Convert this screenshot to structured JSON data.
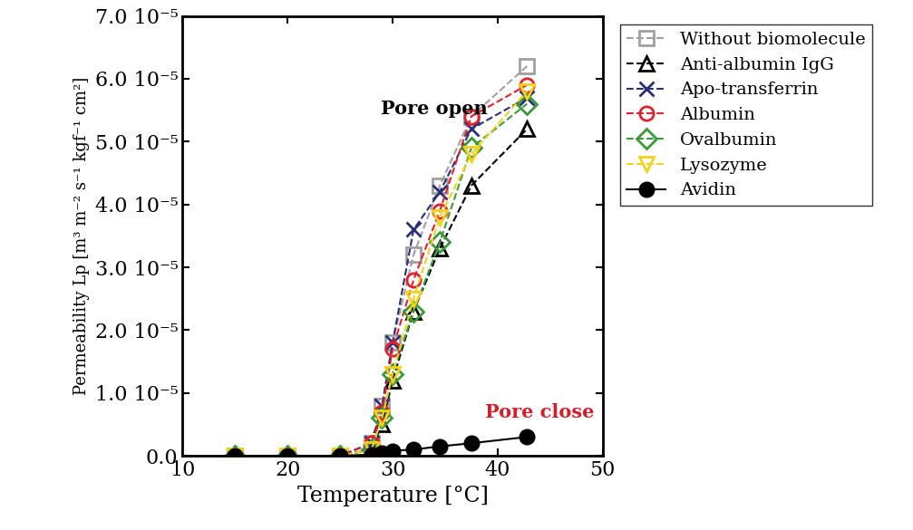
{
  "chart_data": {
    "type": "line",
    "x_label": "Temperature [°C]",
    "y_label": "Permeability Lp [m³ m⁻² s⁻¹ kgf⁻¹ cm²]",
    "annotations": [
      "Pore open",
      "Pore close"
    ],
    "x": [
      15,
      20,
      25,
      28,
      29,
      30,
      32,
      34.5,
      37.5,
      42.8
    ],
    "series": [
      {
        "name": "Without biomolecule",
        "color": "#a0a0a0",
        "marker": "square",
        "line_style": "dashed",
        "values": [
          0,
          0,
          0,
          2e-06,
          8e-06,
          1.8e-05,
          3.2e-05,
          4.3e-05,
          5.4e-05,
          6.2e-05
        ]
      },
      {
        "name": "Anti-albumin IgG",
        "color": "#000000",
        "marker": "triangle_up",
        "line_style": "dashed",
        "values": [
          0,
          0,
          0,
          1e-06,
          5e-06,
          1.2e-05,
          2.3e-05,
          3.3e-05,
          4.3e-05,
          5.2e-05
        ]
      },
      {
        "name": "Apo-transferrin",
        "color": "#2b2f7a",
        "marker": "x",
        "line_style": "dashed",
        "values": [
          0,
          0,
          0,
          2e-06,
          8e-06,
          1.8e-05,
          3.6e-05,
          4.2e-05,
          5.2e-05,
          5.7e-05
        ]
      },
      {
        "name": "Albumin",
        "color": "#e0202a",
        "marker": "circle",
        "line_style": "dashed",
        "values": [
          0,
          0,
          0,
          2e-06,
          7e-06,
          1.7e-05,
          2.8e-05,
          3.9e-05,
          5.4e-05,
          5.9e-05
        ]
      },
      {
        "name": "Ovalbumin",
        "color": "#3a9a3a",
        "marker": "diamond",
        "line_style": "dashed",
        "values": [
          0,
          0,
          0,
          1e-06,
          6e-06,
          1.3e-05,
          2.3e-05,
          3.4e-05,
          4.9e-05,
          5.6e-05
        ]
      },
      {
        "name": "Lysozyme",
        "color": "#f2d21a",
        "marker": "triangle_down",
        "line_style": "dashed",
        "values": [
          0,
          0,
          0,
          1e-06,
          6e-06,
          1.3e-05,
          2.5e-05,
          3.8e-05,
          4.8e-05,
          5.8e-05
        ]
      },
      {
        "name": "Avidin",
        "color": "#000000",
        "marker": "dot",
        "line_style": "solid",
        "values": [
          0,
          0,
          0,
          2e-07,
          5e-07,
          8e-07,
          1e-06,
          1.5e-06,
          2e-06,
          3e-06
        ]
      }
    ],
    "xlim": [
      10,
      50
    ],
    "xticks": [
      10,
      20,
      30,
      40,
      50
    ],
    "ylim": [
      0,
      7e-05
    ],
    "yticks": [
      {
        "value": 0,
        "label": "0.0"
      },
      {
        "value": 1e-05,
        "label": "1.0 10⁻⁵"
      },
      {
        "value": 2e-05,
        "label": "2.0 10⁻⁵"
      },
      {
        "value": 3e-05,
        "label": "3.0 10⁻⁵"
      },
      {
        "value": 4e-05,
        "label": "4.0 10⁻⁵"
      },
      {
        "value": 5e-05,
        "label": "5.0 10⁻⁵"
      },
      {
        "value": 6e-05,
        "label": "6.0 10⁻⁵"
      },
      {
        "value": 7e-05,
        "label": "7.0 10⁻⁵"
      }
    ],
    "legend": "upper left",
    "grid": false
  }
}
